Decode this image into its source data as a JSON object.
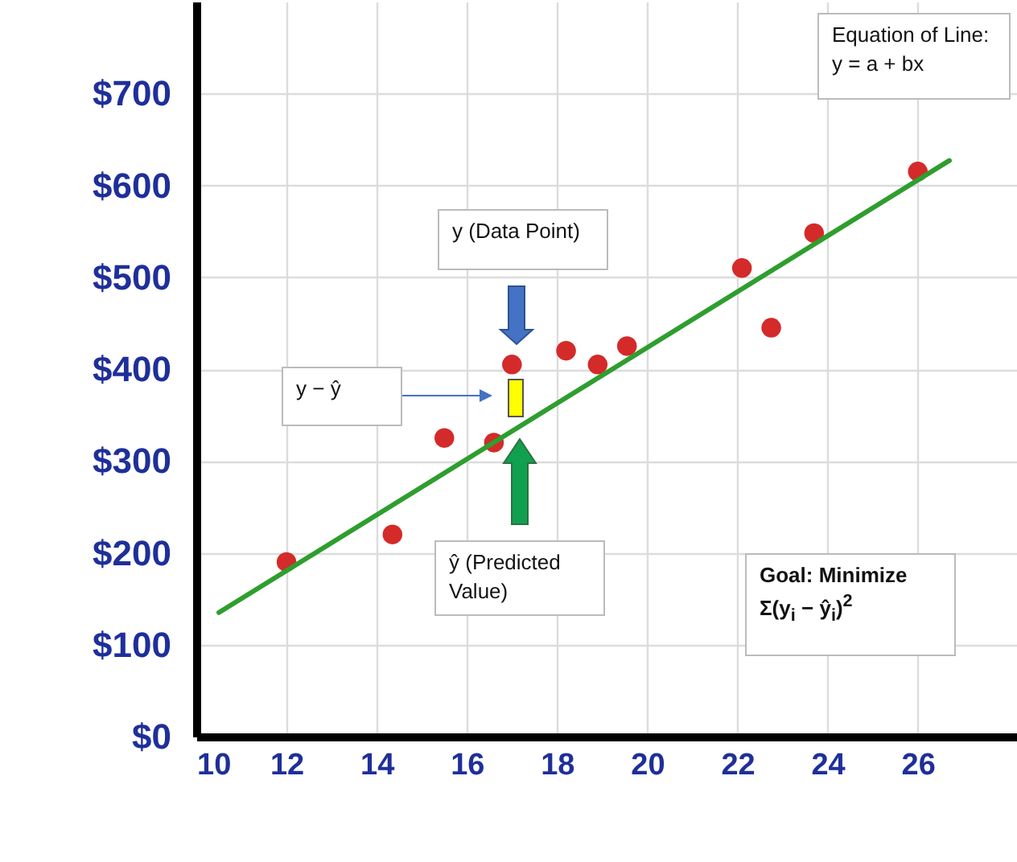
{
  "chart_data": {
    "type": "scatter",
    "grid": true,
    "xlim": [
      10,
      28.2
    ],
    "xticks": [
      10,
      12,
      14,
      16,
      18,
      20,
      22,
      24,
      26
    ],
    "ylim": [
      0,
      800
    ],
    "yticks": [
      {
        "value": 0,
        "label": "$0"
      },
      {
        "value": 100,
        "label": "$100"
      },
      {
        "value": 200,
        "label": "$200"
      },
      {
        "value": 300,
        "label": "$300"
      },
      {
        "value": 400,
        "label": "$400"
      },
      {
        "value": 500,
        "label": "$500"
      },
      {
        "value": 600,
        "label": "$600"
      },
      {
        "value": 700,
        "label": "$700"
      }
    ],
    "series": [
      {
        "marker": "circle",
        "color": "#d42a2a",
        "x": [
          12,
          14.35,
          15.5,
          16.6,
          17,
          18.2,
          18.9,
          19.55,
          22.1,
          22.75,
          23.7,
          26
        ],
        "values": [
          190,
          220,
          325,
          320,
          405,
          420,
          405,
          425,
          510,
          445,
          548,
          615
        ]
      },
      {
        "type": "line",
        "color": "#2e9e2e",
        "x": [
          10.5,
          26.7
        ],
        "values": [
          135,
          627
        ]
      }
    ],
    "annotations": [
      "Equation of Line: y = a + bx",
      "y (Data Point)",
      "y − ŷ",
      "ŷ (Predicted Value)",
      "Goal: Minimize Σ(y$_{i}$ − ŷ$_{i}$)$^{2}$"
    ]
  }
}
